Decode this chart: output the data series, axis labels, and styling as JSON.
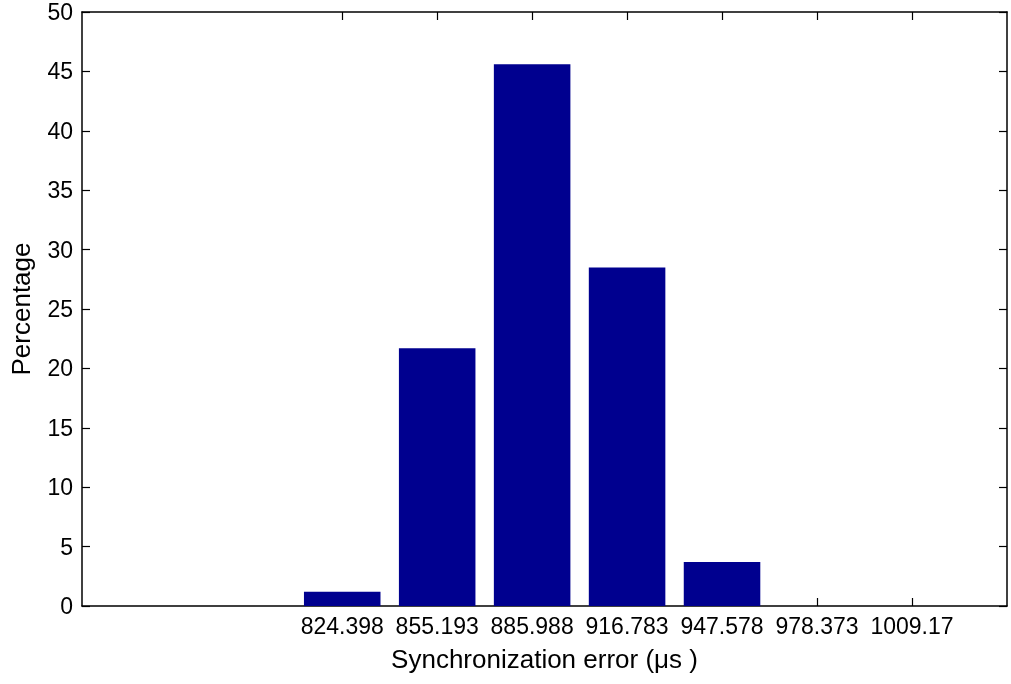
{
  "chart_data": {
    "type": "bar",
    "xlabel": "Synchronization error (μs )",
    "ylabel": "Percentage",
    "x": [
      824.398,
      855.193,
      885.988,
      916.783,
      947.578,
      978.373,
      1009.17
    ],
    "values": [
      1.2,
      21.7,
      45.6,
      28.5,
      3.7,
      0,
      0
    ],
    "color": "#00008f",
    "xlim": [
      740,
      1040
    ],
    "xticks": [
      824.398,
      855.193,
      885.988,
      916.783,
      947.578,
      978.373,
      1009.17
    ],
    "ylim": [
      0,
      50
    ],
    "yticks": [
      0,
      5,
      10,
      15,
      20,
      25,
      30,
      35,
      40,
      45,
      50
    ],
    "grid": false
  }
}
